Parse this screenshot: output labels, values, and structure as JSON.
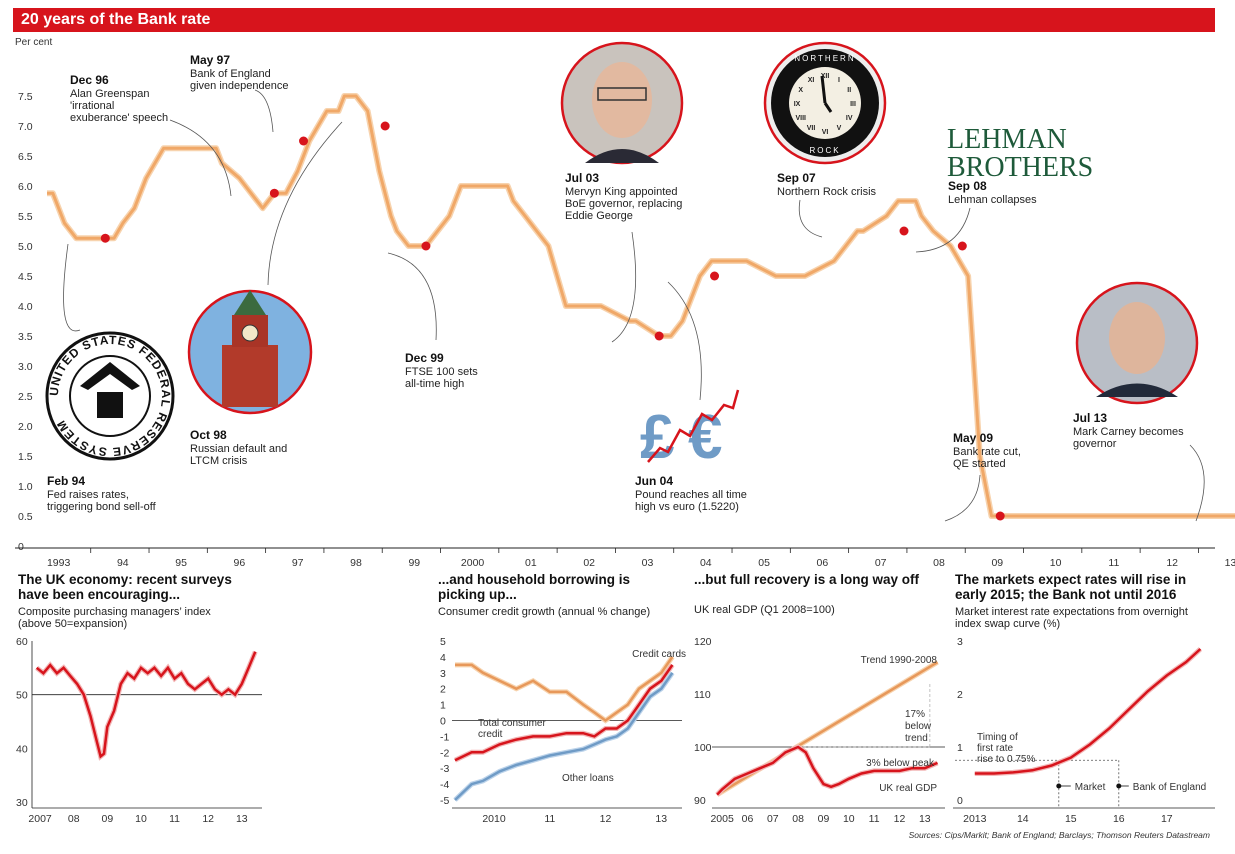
{
  "title": "20 years of the Bank rate",
  "sources": "Sources:  Cips/Markit; Bank of England; Barclays; Thomson Reuters Datastream",
  "colors": {
    "accent": "#d7141c",
    "line": "#f0a868",
    "dot": "#d7141c",
    "blue": "#6f9bc6"
  },
  "chart_data": [
    {
      "type": "line",
      "unit": "Per cent",
      "yticks": [
        "7.5",
        "7.0",
        "6.5",
        "6.0",
        "5.5",
        "5.0",
        "4.5",
        "4.0",
        "3.5",
        "3.0",
        "2.5",
        "2.0",
        "1.5",
        "1.0",
        "0.5",
        "0"
      ],
      "ylim": [
        0,
        8
      ],
      "xticks": [
        "1993",
        "94",
        "95",
        "96",
        "97",
        "98",
        "99",
        "2000",
        "01",
        "02",
        "03",
        "04",
        "05",
        "06",
        "07",
        "08",
        "09",
        "10",
        "11",
        "12",
        "13"
      ],
      "series": [
        {
          "x": [
            1993.0,
            1993.1,
            1993.3,
            1993.5,
            1994.0,
            1994.15,
            1994.3,
            1994.5,
            1994.7,
            1995.0,
            1995.4,
            1995.9,
            1996.0,
            1996.3,
            1996.5,
            1996.7,
            1996.9,
            1997.1,
            1997.3,
            1997.5,
            1997.8,
            1998.0,
            1998.1,
            1998.3,
            1998.5,
            1998.7,
            1998.9,
            1999.0,
            1999.2,
            1999.5,
            1999.7,
            1999.9,
            2000.0,
            2000.1,
            2000.5,
            2000.9,
            2001.0,
            2001.2,
            2001.4,
            2001.6,
            2001.75,
            2001.9,
            2002.0,
            2002.5,
            2003.0,
            2003.1,
            2003.5,
            2003.7,
            2003.9,
            2004.0,
            2004.2,
            2004.4,
            2004.6,
            2005.0,
            2005.5,
            2005.9,
            2006.0,
            2006.5,
            2006.7,
            2006.9,
            2007.0,
            2007.4,
            2007.6,
            2007.9,
            2008.0,
            2008.2,
            2008.5,
            2008.8,
            2008.9,
            2009.0,
            2009.2,
            2010.0,
            2011.0,
            2012.0,
            2013.0,
            2013.8
          ],
          "y": [
            5.88,
            5.88,
            5.38,
            5.13,
            5.13,
            5.13,
            5.38,
            5.63,
            6.13,
            6.63,
            6.63,
            6.63,
            6.38,
            6.13,
            5.88,
            5.63,
            5.88,
            5.88,
            6.25,
            6.75,
            7.25,
            7.25,
            7.5,
            7.5,
            7.25,
            6.25,
            5.5,
            5.25,
            5.0,
            5.0,
            5.25,
            5.5,
            5.75,
            6.0,
            6.0,
            6.0,
            5.75,
            5.5,
            5.25,
            5.0,
            4.5,
            4.0,
            4.0,
            4.0,
            3.75,
            3.75,
            3.5,
            3.5,
            3.75,
            4.0,
            4.5,
            4.75,
            4.75,
            4.75,
            4.5,
            4.5,
            4.5,
            4.75,
            5.0,
            5.25,
            5.25,
            5.5,
            5.75,
            5.75,
            5.5,
            5.25,
            5.0,
            4.5,
            3.0,
            1.5,
            0.5,
            0.5,
            0.5,
            0.5,
            0.5,
            0.5
          ]
        }
      ],
      "events": [
        {
          "date": "Feb 94",
          "x": 1994.0,
          "y": 5.13,
          "lines": [
            "Fed raises rates,",
            "triggering bond sell-off"
          ]
        },
        {
          "date": "Dec 96",
          "x": 1996.9,
          "y": 5.88,
          "lines": [
            "Alan Greenspan",
            "'irrational",
            "exuberance' speech"
          ]
        },
        {
          "date": "May 97",
          "x": 1997.4,
          "y": 6.75,
          "lines": [
            "Bank of England",
            "given independence"
          ]
        },
        {
          "date": "Oct 98",
          "x": 1998.8,
          "y": 7.0,
          "lines": [
            "Russian default and",
            "LTCM crisis"
          ]
        },
        {
          "date": "Dec 99",
          "x": 1999.5,
          "y": 5.0,
          "lines": [
            "FTSE 100 sets",
            "all-time high"
          ]
        },
        {
          "date": "Jul 03",
          "x": 2003.5,
          "y": 3.5,
          "lines": [
            "Mervyn King  appointed",
            "BoE governor, replacing",
            "Eddie George"
          ]
        },
        {
          "date": "Jun 04",
          "x": 2004.45,
          "y": 4.5,
          "lines": [
            "Pound reaches all time",
            "high vs euro (1.5220)"
          ]
        },
        {
          "date": "Sep 07",
          "x": 2007.7,
          "y": 5.25,
          "lines": [
            "Northern Rock crisis"
          ]
        },
        {
          "date": "Sep 08",
          "x": 2008.7,
          "y": 5.0,
          "lines": [
            "Lehman collapses"
          ]
        },
        {
          "date": "May 09",
          "x": 2009.35,
          "y": 0.5,
          "lines": [
            "Bank rate cut,",
            "QE started"
          ]
        },
        {
          "date": "Jul 13",
          "x": 2013.6,
          "y": 0.5,
          "lines": [
            "Mark Carney becomes",
            "governor"
          ]
        }
      ],
      "logos": {
        "fed": "UNITED STATES FEDERAL RESERVE SYSTEM",
        "lehman": [
          "LEHMAN",
          "BROTHERS"
        ],
        "clock": [
          "NORTHERN",
          "ROCK"
        ],
        "clock_numerals": [
          "XII",
          "I",
          "II",
          "III",
          "IV",
          "V",
          "VI",
          "VII",
          "VIII",
          "IX",
          "X",
          "XI"
        ]
      }
    },
    {
      "type": "line",
      "title": [
        "The UK economy: recent surveys",
        "have been encouraging..."
      ],
      "subtitle": [
        "Composite purchasing managers’ index",
        "(above 50=expansion)"
      ],
      "yticks": [
        "60",
        "50",
        "40",
        "30"
      ],
      "ylim": [
        30,
        60
      ],
      "xticks": [
        "2007",
        "08",
        "09",
        "10",
        "11",
        "12",
        "13"
      ],
      "series": [
        {
          "x": [
            2007.0,
            2007.2,
            2007.4,
            2007.6,
            2007.8,
            2008.0,
            2008.2,
            2008.4,
            2008.6,
            2008.8,
            2008.9,
            2009.0,
            2009.1,
            2009.3,
            2009.5,
            2009.7,
            2009.9,
            2010.1,
            2010.3,
            2010.5,
            2010.7,
            2010.9,
            2011.1,
            2011.3,
            2011.5,
            2011.7,
            2011.9,
            2012.1,
            2012.3,
            2012.5,
            2012.7,
            2012.9,
            2013.1,
            2013.3,
            2013.5
          ],
          "y": [
            55,
            54,
            55.5,
            54,
            55,
            53.5,
            52,
            50,
            46,
            41,
            38.5,
            39,
            44,
            47,
            52,
            54,
            53,
            55,
            54,
            55,
            53.5,
            55,
            53,
            54,
            52,
            51,
            52,
            53,
            51,
            50,
            51,
            50,
            52,
            55,
            58
          ]
        }
      ]
    },
    {
      "type": "line",
      "title": [
        "...and household borrowing is",
        "picking up..."
      ],
      "subtitle": [
        "Consumer credit growth (annual % change)"
      ],
      "yticks": [
        "5",
        "4",
        "3",
        "2",
        "1",
        "0",
        "-1",
        "-2",
        "-3",
        "-4",
        "-5"
      ],
      "ylim": [
        -5,
        5
      ],
      "xticks": [
        "2010",
        "11",
        "12",
        "13"
      ],
      "series": [
        {
          "name": "Credit cards",
          "x": [
            2009.5,
            2009.8,
            2010.0,
            2010.3,
            2010.6,
            2010.9,
            2011.2,
            2011.5,
            2011.8,
            2012.0,
            2012.2,
            2012.4,
            2012.6,
            2012.8,
            2013.0,
            2013.2,
            2013.4
          ],
          "y": [
            3.5,
            3.5,
            3.0,
            2.5,
            2.0,
            2.5,
            1.8,
            1.8,
            1.0,
            0.5,
            0.0,
            0.5,
            1.0,
            2.0,
            2.5,
            3.0,
            4.0
          ]
        },
        {
          "name": "Total consumer credit",
          "x": [
            2009.5,
            2009.8,
            2010.0,
            2010.3,
            2010.6,
            2010.9,
            2011.2,
            2011.5,
            2011.8,
            2012.0,
            2012.2,
            2012.4,
            2012.6,
            2012.8,
            2013.0,
            2013.2,
            2013.4
          ],
          "y": [
            -2.5,
            -2.0,
            -2.0,
            -1.5,
            -1.2,
            -1.0,
            -1.0,
            -0.8,
            -0.8,
            -1.0,
            -0.5,
            -0.5,
            0.0,
            1.0,
            2.0,
            2.5,
            3.5
          ]
        },
        {
          "name": "Other loans",
          "x": [
            2009.5,
            2009.8,
            2010.0,
            2010.3,
            2010.6,
            2010.9,
            2011.2,
            2011.5,
            2011.8,
            2012.0,
            2012.2,
            2012.4,
            2012.6,
            2012.8,
            2013.0,
            2013.2,
            2013.4
          ],
          "y": [
            -5.0,
            -4.0,
            -3.8,
            -3.2,
            -2.8,
            -2.5,
            -2.2,
            -2.0,
            -1.8,
            -1.5,
            -1.2,
            -1.0,
            -0.5,
            0.5,
            1.5,
            2.0,
            3.0
          ]
        }
      ]
    },
    {
      "type": "line",
      "title": [
        "...but full recovery is a long way off"
      ],
      "subtitle": [
        "UK real GDP (Q1 2008=100)"
      ],
      "yticks": [
        "120",
        "110",
        "100",
        "90"
      ],
      "ylim": [
        90,
        120
      ],
      "xticks": [
        "2005",
        "06",
        "07",
        "08",
        "09",
        "10",
        "11",
        "12",
        "13"
      ],
      "annotations": [
        "Trend 1990-2008",
        "17%",
        "below",
        "trend",
        "3% below peak",
        "UK real GDP"
      ],
      "series": [
        {
          "name": "Trend 1990-2008",
          "x": [
            2004.8,
            2013.5
          ],
          "y": [
            91,
            116
          ]
        },
        {
          "name": "UK real GDP",
          "x": [
            2004.8,
            2005.0,
            2005.5,
            2006.0,
            2006.5,
            2007.0,
            2007.5,
            2008.0,
            2008.3,
            2008.6,
            2009.0,
            2009.3,
            2009.6,
            2010.0,
            2010.5,
            2011.0,
            2011.5,
            2012.0,
            2012.5,
            2013.0,
            2013.5
          ],
          "y": [
            91,
            92,
            94,
            95,
            96,
            97,
            99,
            100,
            99,
            96,
            93,
            92.5,
            93,
            94,
            95,
            95.5,
            95.5,
            95.5,
            96,
            96,
            97
          ]
        }
      ]
    },
    {
      "type": "line",
      "title": [
        "The markets expect rates will rise in",
        "early 2015; the Bank not until 2016"
      ],
      "subtitle": [
        "Market interest rate expectations from overnight",
        "index swap curve (%)"
      ],
      "yticks": [
        "3",
        "2",
        "1",
        "0"
      ],
      "ylim": [
        0,
        3
      ],
      "xticks": [
        "2013",
        "14",
        "15",
        "16",
        "17"
      ],
      "annotations": [
        "Timing of",
        "first rate",
        "rise to 0.75%",
        "Market",
        "Bank of England"
      ],
      "markers": {
        "Market": 2014.75,
        "Bank of England": 2016.0
      },
      "series": [
        {
          "x": [
            2013.0,
            2013.4,
            2013.8,
            2014.2,
            2014.6,
            2015.0,
            2015.4,
            2015.8,
            2016.2,
            2016.6,
            2017.0,
            2017.4,
            2017.7
          ],
          "y": [
            0.5,
            0.5,
            0.52,
            0.56,
            0.65,
            0.8,
            1.05,
            1.35,
            1.7,
            2.05,
            2.35,
            2.6,
            2.85
          ]
        }
      ]
    }
  ]
}
